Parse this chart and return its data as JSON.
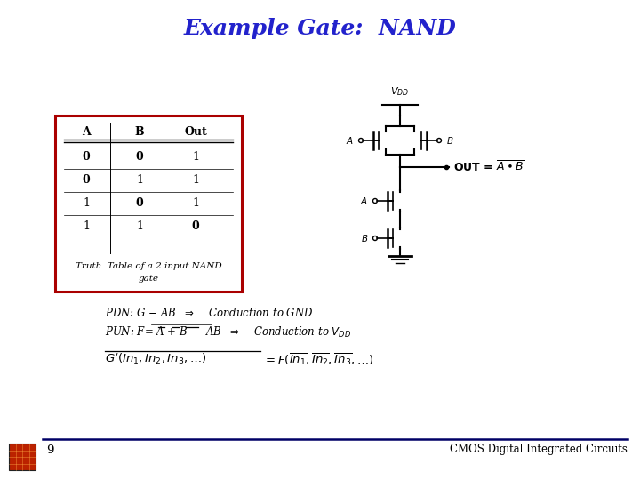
{
  "title": "Example Gate:  NAND",
  "title_color": "#2222cc",
  "title_fontsize": 18,
  "bg_color": "#ffffff",
  "footer_line_color": "#000066",
  "footer_page": "9",
  "footer_text": "CMOS Digital Integrated Circuits",
  "truth_table": {
    "headers": [
      "A",
      "B",
      "Out"
    ],
    "rows": [
      [
        "0",
        "0",
        "1"
      ],
      [
        "0",
        "1",
        "1"
      ],
      [
        "1",
        "0",
        "1"
      ],
      [
        "1",
        "1",
        "0"
      ]
    ],
    "caption_line1": "Truth  Table of a 2 input NAND",
    "caption_line2": "gate",
    "box_color": "#aa0000"
  }
}
